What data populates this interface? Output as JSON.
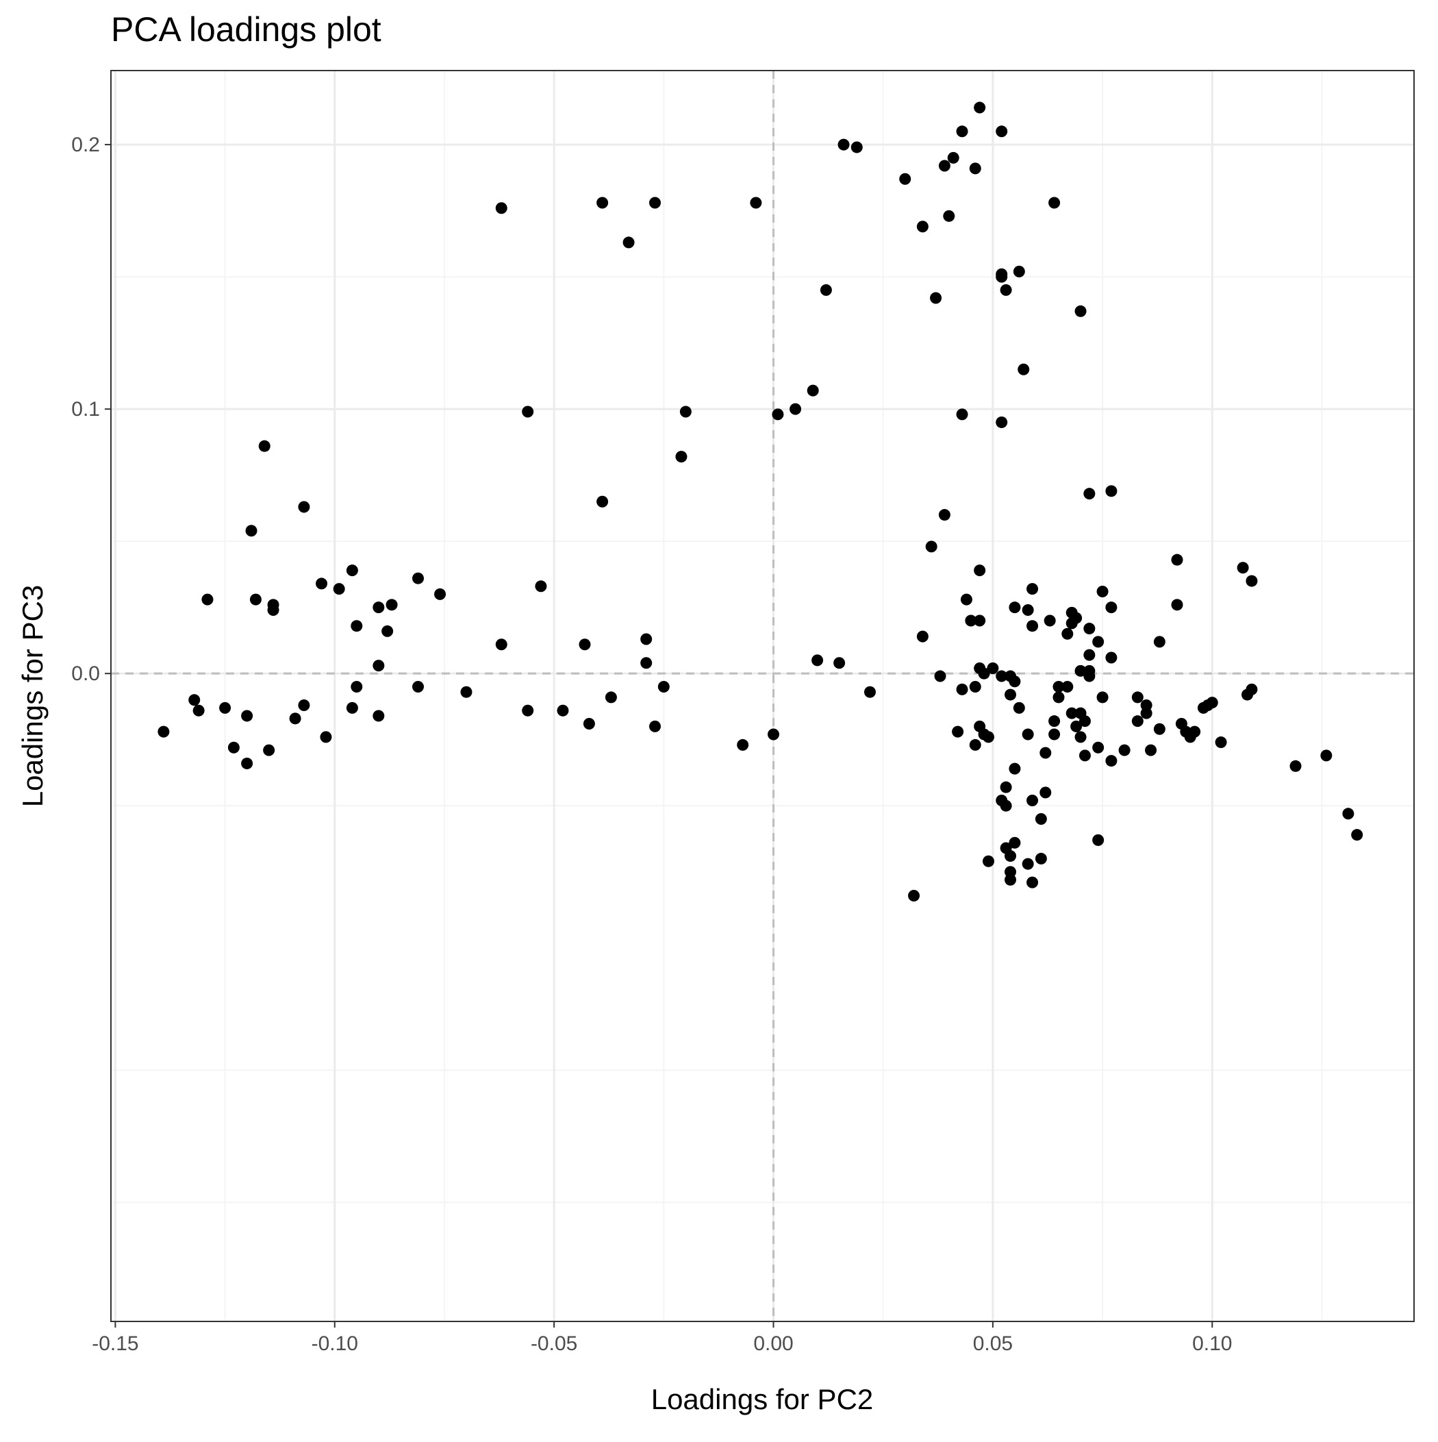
{
  "chart_data": {
    "type": "scatter",
    "title": "PCA loadings plot",
    "xlabel": "Loadings for PC2",
    "ylabel": "Loadings for PC3",
    "xlim": [
      -0.151,
      0.146
    ],
    "ylim": [
      -0.245,
      0.228
    ],
    "x_ticks": [
      -0.15,
      -0.1,
      -0.05,
      0.0,
      0.05,
      0.1
    ],
    "x_tick_labels": [
      "-0.15",
      "-0.10",
      "-0.05",
      "0.00",
      "0.05",
      "0.10"
    ],
    "y_ticks": [
      0.0,
      0.1,
      0.2
    ],
    "y_tick_labels": [
      "0.0",
      "0.1",
      "0.2"
    ],
    "x_minor_ticks": [
      -0.125,
      -0.075,
      -0.025,
      0.025,
      0.075,
      0.125
    ],
    "y_minor_ticks": [
      -0.2,
      -0.15,
      -0.05,
      0.05,
      0.15
    ],
    "reference_lines": {
      "x": 0,
      "y": 0,
      "style": "dashed"
    },
    "grid": true,
    "theme": "bw",
    "colors": {
      "point": "#000000",
      "major_grid": "#ebebeb",
      "minor_grid": "#f4f4f4",
      "reference_line": "#bdbdbd",
      "panel_border": "#333333",
      "tick_label": "#4d4d4d"
    },
    "points": [
      {
        "x": 0.047,
        "y": 0.214
      },
      {
        "x": 0.043,
        "y": 0.205
      },
      {
        "x": 0.052,
        "y": 0.205
      },
      {
        "x": 0.016,
        "y": 0.2
      },
      {
        "x": 0.019,
        "y": 0.199
      },
      {
        "x": 0.041,
        "y": 0.195
      },
      {
        "x": 0.039,
        "y": 0.192
      },
      {
        "x": 0.046,
        "y": 0.191
      },
      {
        "x": 0.03,
        "y": 0.187
      },
      {
        "x": -0.062,
        "y": 0.176
      },
      {
        "x": -0.039,
        "y": 0.178
      },
      {
        "x": -0.027,
        "y": 0.178
      },
      {
        "x": -0.004,
        "y": 0.178
      },
      {
        "x": 0.064,
        "y": 0.178
      },
      {
        "x": 0.04,
        "y": 0.173
      },
      {
        "x": 0.034,
        "y": 0.169
      },
      {
        "x": -0.033,
        "y": 0.163
      },
      {
        "x": 0.052,
        "y": 0.151
      },
      {
        "x": 0.052,
        "y": 0.15
      },
      {
        "x": 0.056,
        "y": 0.152
      },
      {
        "x": 0.053,
        "y": 0.145
      },
      {
        "x": 0.012,
        "y": 0.145
      },
      {
        "x": 0.037,
        "y": 0.142
      },
      {
        "x": 0.07,
        "y": 0.137
      },
      {
        "x": 0.057,
        "y": 0.115
      },
      {
        "x": 0.009,
        "y": 0.107
      },
      {
        "x": -0.056,
        "y": 0.099
      },
      {
        "x": -0.02,
        "y": 0.099
      },
      {
        "x": 0.001,
        "y": 0.098
      },
      {
        "x": 0.005,
        "y": 0.1
      },
      {
        "x": 0.043,
        "y": 0.098
      },
      {
        "x": 0.052,
        "y": 0.095
      },
      {
        "x": -0.021,
        "y": 0.082
      },
      {
        "x": -0.116,
        "y": 0.086
      },
      {
        "x": 0.077,
        "y": 0.069
      },
      {
        "x": 0.072,
        "y": 0.068
      },
      {
        "x": -0.039,
        "y": 0.065
      },
      {
        "x": -0.107,
        "y": 0.063
      },
      {
        "x": 0.039,
        "y": 0.06
      },
      {
        "x": -0.119,
        "y": 0.054
      },
      {
        "x": 0.036,
        "y": 0.048
      },
      {
        "x": 0.092,
        "y": 0.043
      },
      {
        "x": 0.107,
        "y": 0.04
      },
      {
        "x": 0.047,
        "y": 0.039
      },
      {
        "x": -0.096,
        "y": 0.039
      },
      {
        "x": -0.081,
        "y": 0.036
      },
      {
        "x": 0.109,
        "y": 0.035
      },
      {
        "x": -0.103,
        "y": 0.034
      },
      {
        "x": -0.053,
        "y": 0.033
      },
      {
        "x": -0.099,
        "y": 0.032
      },
      {
        "x": 0.059,
        "y": 0.032
      },
      {
        "x": 0.075,
        "y": 0.031
      },
      {
        "x": -0.076,
        "y": 0.03
      },
      {
        "x": 0.044,
        "y": 0.028
      },
      {
        "x": -0.129,
        "y": 0.028
      },
      {
        "x": -0.118,
        "y": 0.028
      },
      {
        "x": -0.114,
        "y": 0.026
      },
      {
        "x": -0.087,
        "y": 0.026
      },
      {
        "x": 0.092,
        "y": 0.026
      },
      {
        "x": 0.077,
        "y": 0.025
      },
      {
        "x": 0.055,
        "y": 0.025
      },
      {
        "x": -0.09,
        "y": 0.025
      },
      {
        "x": -0.114,
        "y": 0.024
      },
      {
        "x": 0.058,
        "y": 0.024
      },
      {
        "x": 0.068,
        "y": 0.023
      },
      {
        "x": 0.069,
        "y": 0.021
      },
      {
        "x": 0.045,
        "y": 0.02
      },
      {
        "x": 0.047,
        "y": 0.02
      },
      {
        "x": 0.063,
        "y": 0.02
      },
      {
        "x": 0.068,
        "y": 0.019
      },
      {
        "x": 0.059,
        "y": 0.018
      },
      {
        "x": -0.095,
        "y": 0.018
      },
      {
        "x": 0.072,
        "y": 0.017
      },
      {
        "x": -0.088,
        "y": 0.016
      },
      {
        "x": 0.067,
        "y": 0.015
      },
      {
        "x": 0.034,
        "y": 0.014
      },
      {
        "x": -0.029,
        "y": 0.013
      },
      {
        "x": 0.074,
        "y": 0.012
      },
      {
        "x": -0.062,
        "y": 0.011
      },
      {
        "x": -0.043,
        "y": 0.011
      },
      {
        "x": 0.088,
        "y": 0.012
      },
      {
        "x": 0.072,
        "y": 0.007
      },
      {
        "x": 0.077,
        "y": 0.006
      },
      {
        "x": 0.01,
        "y": 0.005
      },
      {
        "x": 0.015,
        "y": 0.004
      },
      {
        "x": -0.029,
        "y": 0.004
      },
      {
        "x": -0.09,
        "y": 0.003
      },
      {
        "x": 0.047,
        "y": 0.002
      },
      {
        "x": 0.05,
        "y": 0.002
      },
      {
        "x": 0.07,
        "y": 0.001
      },
      {
        "x": 0.072,
        "y": 0.001
      },
      {
        "x": 0.048,
        "y": 0.0
      },
      {
        "x": 0.038,
        "y": -0.001
      },
      {
        "x": 0.072,
        "y": -0.001
      },
      {
        "x": 0.052,
        "y": -0.001
      },
      {
        "x": 0.054,
        "y": -0.001
      },
      {
        "x": 0.055,
        "y": -0.003
      },
      {
        "x": -0.095,
        "y": -0.005
      },
      {
        "x": -0.081,
        "y": -0.005
      },
      {
        "x": -0.025,
        "y": -0.005
      },
      {
        "x": 0.046,
        "y": -0.005
      },
      {
        "x": 0.043,
        "y": -0.006
      },
      {
        "x": 0.065,
        "y": -0.005
      },
      {
        "x": 0.067,
        "y": -0.005
      },
      {
        "x": 0.109,
        "y": -0.006
      },
      {
        "x": 0.022,
        "y": -0.007
      },
      {
        "x": -0.07,
        "y": -0.007
      },
      {
        "x": 0.054,
        "y": -0.008
      },
      {
        "x": -0.037,
        "y": -0.009
      },
      {
        "x": 0.065,
        "y": -0.009
      },
      {
        "x": 0.075,
        "y": -0.009
      },
      {
        "x": 0.083,
        "y": -0.009
      },
      {
        "x": 0.108,
        "y": -0.008
      },
      {
        "x": -0.132,
        "y": -0.01
      },
      {
        "x": -0.107,
        "y": -0.012
      },
      {
        "x": 0.085,
        "y": -0.012
      },
      {
        "x": 0.1,
        "y": -0.011
      },
      {
        "x": 0.099,
        "y": -0.012
      },
      {
        "x": 0.056,
        "y": -0.013
      },
      {
        "x": -0.125,
        "y": -0.013
      },
      {
        "x": -0.096,
        "y": -0.013
      },
      {
        "x": 0.098,
        "y": -0.013
      },
      {
        "x": -0.131,
        "y": -0.014
      },
      {
        "x": -0.056,
        "y": -0.014
      },
      {
        "x": -0.048,
        "y": -0.014
      },
      {
        "x": 0.068,
        "y": -0.015
      },
      {
        "x": 0.07,
        "y": -0.015
      },
      {
        "x": 0.085,
        "y": -0.015
      },
      {
        "x": -0.12,
        "y": -0.016
      },
      {
        "x": -0.09,
        "y": -0.016
      },
      {
        "x": -0.109,
        "y": -0.017
      },
      {
        "x": 0.064,
        "y": -0.018
      },
      {
        "x": 0.071,
        "y": -0.018
      },
      {
        "x": 0.083,
        "y": -0.018
      },
      {
        "x": -0.042,
        "y": -0.019
      },
      {
        "x": 0.093,
        "y": -0.019
      },
      {
        "x": 0.047,
        "y": -0.02
      },
      {
        "x": -0.027,
        "y": -0.02
      },
      {
        "x": 0.069,
        "y": -0.02
      },
      {
        "x": 0.088,
        "y": -0.021
      },
      {
        "x": 0.094,
        "y": -0.022
      },
      {
        "x": 0.096,
        "y": -0.022
      },
      {
        "x": -0.139,
        "y": -0.022
      },
      {
        "x": 0.042,
        "y": -0.022
      },
      {
        "x": 0.048,
        "y": -0.023
      },
      {
        "x": 0.058,
        "y": -0.023
      },
      {
        "x": 0.064,
        "y": -0.023
      },
      {
        "x": 0.049,
        "y": -0.024
      },
      {
        "x": -0.102,
        "y": -0.024
      },
      {
        "x": 0.0,
        "y": -0.023
      },
      {
        "x": 0.07,
        "y": -0.024
      },
      {
        "x": 0.095,
        "y": -0.024
      },
      {
        "x": 0.102,
        "y": -0.026
      },
      {
        "x": -0.007,
        "y": -0.027
      },
      {
        "x": 0.046,
        "y": -0.027
      },
      {
        "x": -0.123,
        "y": -0.028
      },
      {
        "x": -0.115,
        "y": -0.029
      },
      {
        "x": 0.074,
        "y": -0.028
      },
      {
        "x": 0.08,
        "y": -0.029
      },
      {
        "x": 0.086,
        "y": -0.029
      },
      {
        "x": 0.062,
        "y": -0.03
      },
      {
        "x": 0.071,
        "y": -0.031
      },
      {
        "x": 0.126,
        "y": -0.031
      },
      {
        "x": 0.077,
        "y": -0.033
      },
      {
        "x": -0.12,
        "y": -0.034
      },
      {
        "x": 0.119,
        "y": -0.035
      },
      {
        "x": 0.055,
        "y": -0.036
      },
      {
        "x": 0.053,
        "y": -0.043
      },
      {
        "x": 0.062,
        "y": -0.045
      },
      {
        "x": 0.059,
        "y": -0.048
      },
      {
        "x": 0.052,
        "y": -0.048
      },
      {
        "x": 0.053,
        "y": -0.05
      },
      {
        "x": 0.061,
        "y": -0.055
      },
      {
        "x": 0.131,
        "y": -0.053
      },
      {
        "x": 0.133,
        "y": -0.061
      },
      {
        "x": 0.074,
        "y": -0.063
      },
      {
        "x": 0.055,
        "y": -0.064
      },
      {
        "x": 0.053,
        "y": -0.066
      },
      {
        "x": 0.054,
        "y": -0.069
      },
      {
        "x": 0.049,
        "y": -0.071
      },
      {
        "x": 0.061,
        "y": -0.07
      },
      {
        "x": 0.058,
        "y": -0.072
      },
      {
        "x": 0.054,
        "y": -0.075
      },
      {
        "x": 0.054,
        "y": -0.078
      },
      {
        "x": 0.059,
        "y": -0.079
      },
      {
        "x": 0.032,
        "y": -0.084
      }
    ]
  }
}
